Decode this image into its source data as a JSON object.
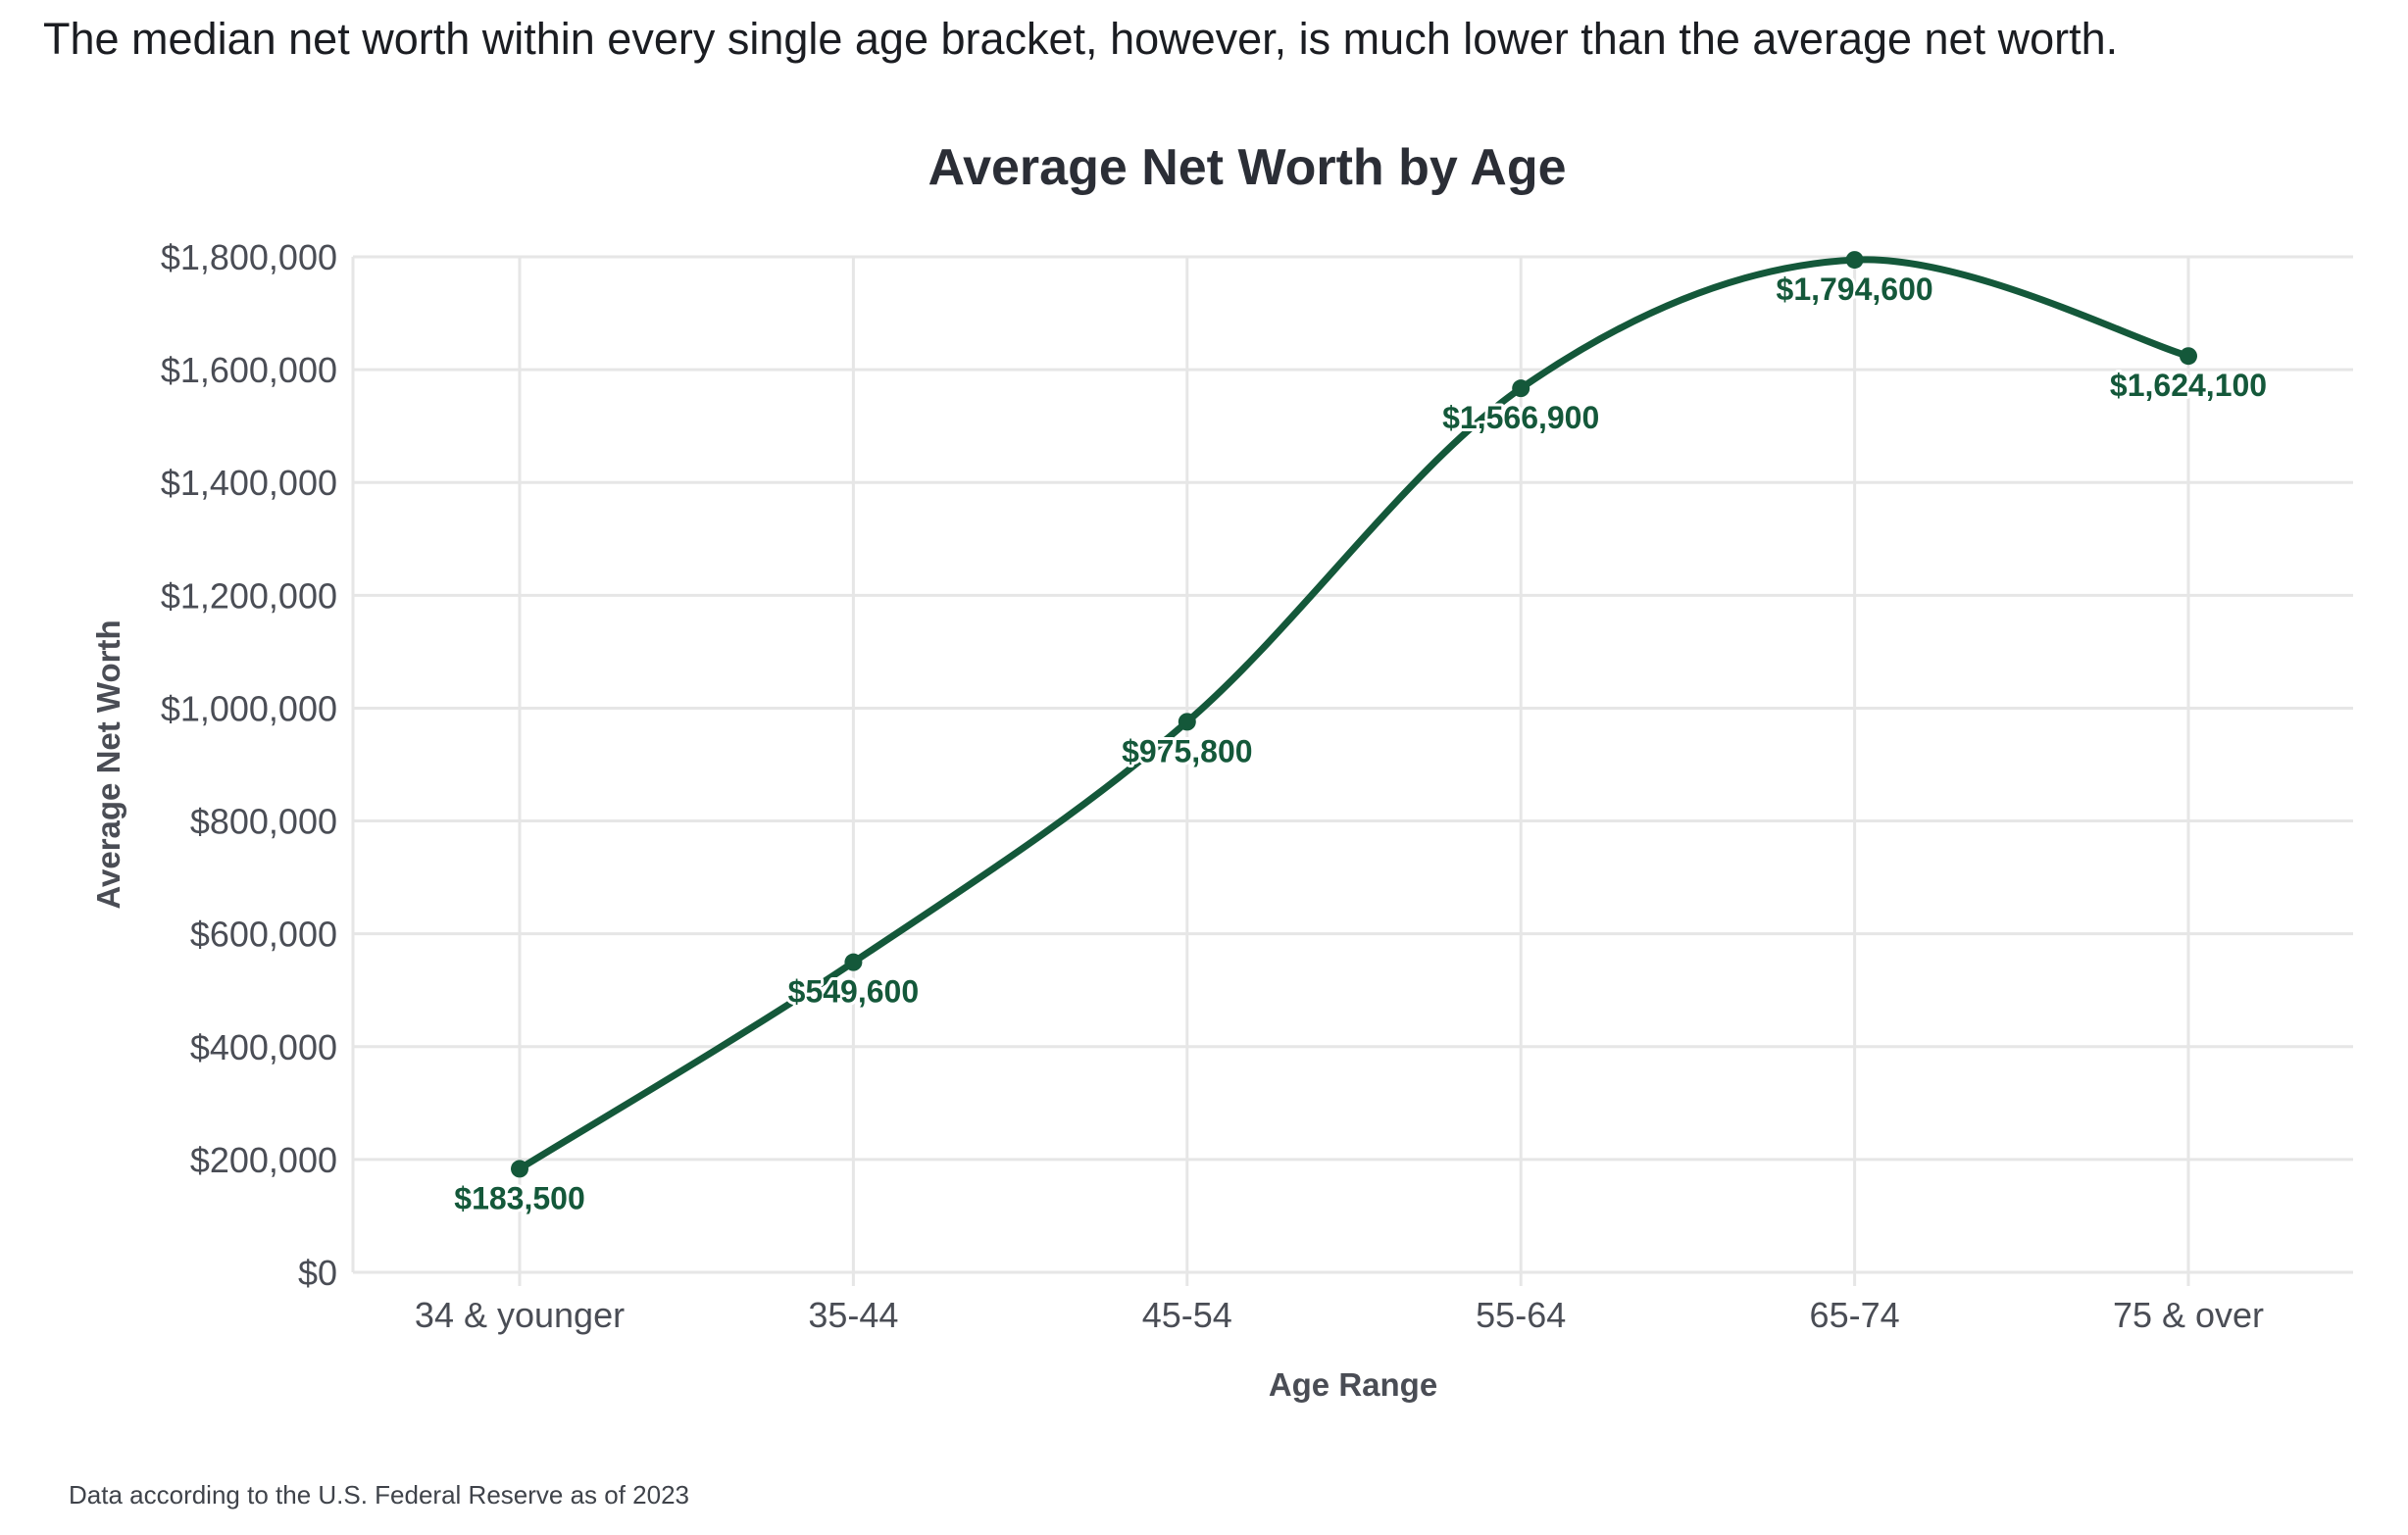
{
  "intro_text": "The median net worth within every single age bracket, however, is much lower than the average net worth.",
  "footnote": "Data according to the U.S. Federal Reserve as of 2023",
  "colors": {
    "line": "#14583a",
    "grid": "#e6e6e6",
    "title": "#2b2e36",
    "axis_text": "#4a4d55"
  },
  "chart_data": {
    "type": "line",
    "title": "Average Net Worth by Age",
    "xlabel": "Age Range",
    "ylabel": "Average Net Worth",
    "categories": [
      "34 & younger",
      "35-44",
      "45-54",
      "55-64",
      "65-74",
      "75 & over"
    ],
    "series": [
      {
        "values": [
          183500,
          549600,
          975800,
          1566900,
          1794600,
          1624100
        ],
        "labels": [
          "$183,500",
          "$549,600",
          "$975,800",
          "$1,566,900",
          "$1,794,600",
          "$1,624,100"
        ]
      }
    ],
    "ylim": [
      0,
      1800000
    ],
    "yticks": [
      0,
      200000,
      400000,
      600000,
      800000,
      1000000,
      1200000,
      1400000,
      1600000,
      1800000
    ],
    "ytick_labels": [
      "$0",
      "$200,000",
      "$400,000",
      "$600,000",
      "$800,000",
      "$1,000,000",
      "$1,200,000",
      "$1,400,000",
      "$1,600,000",
      "$1,800,000"
    ],
    "grid": true,
    "legend": false,
    "smooth": true
  }
}
